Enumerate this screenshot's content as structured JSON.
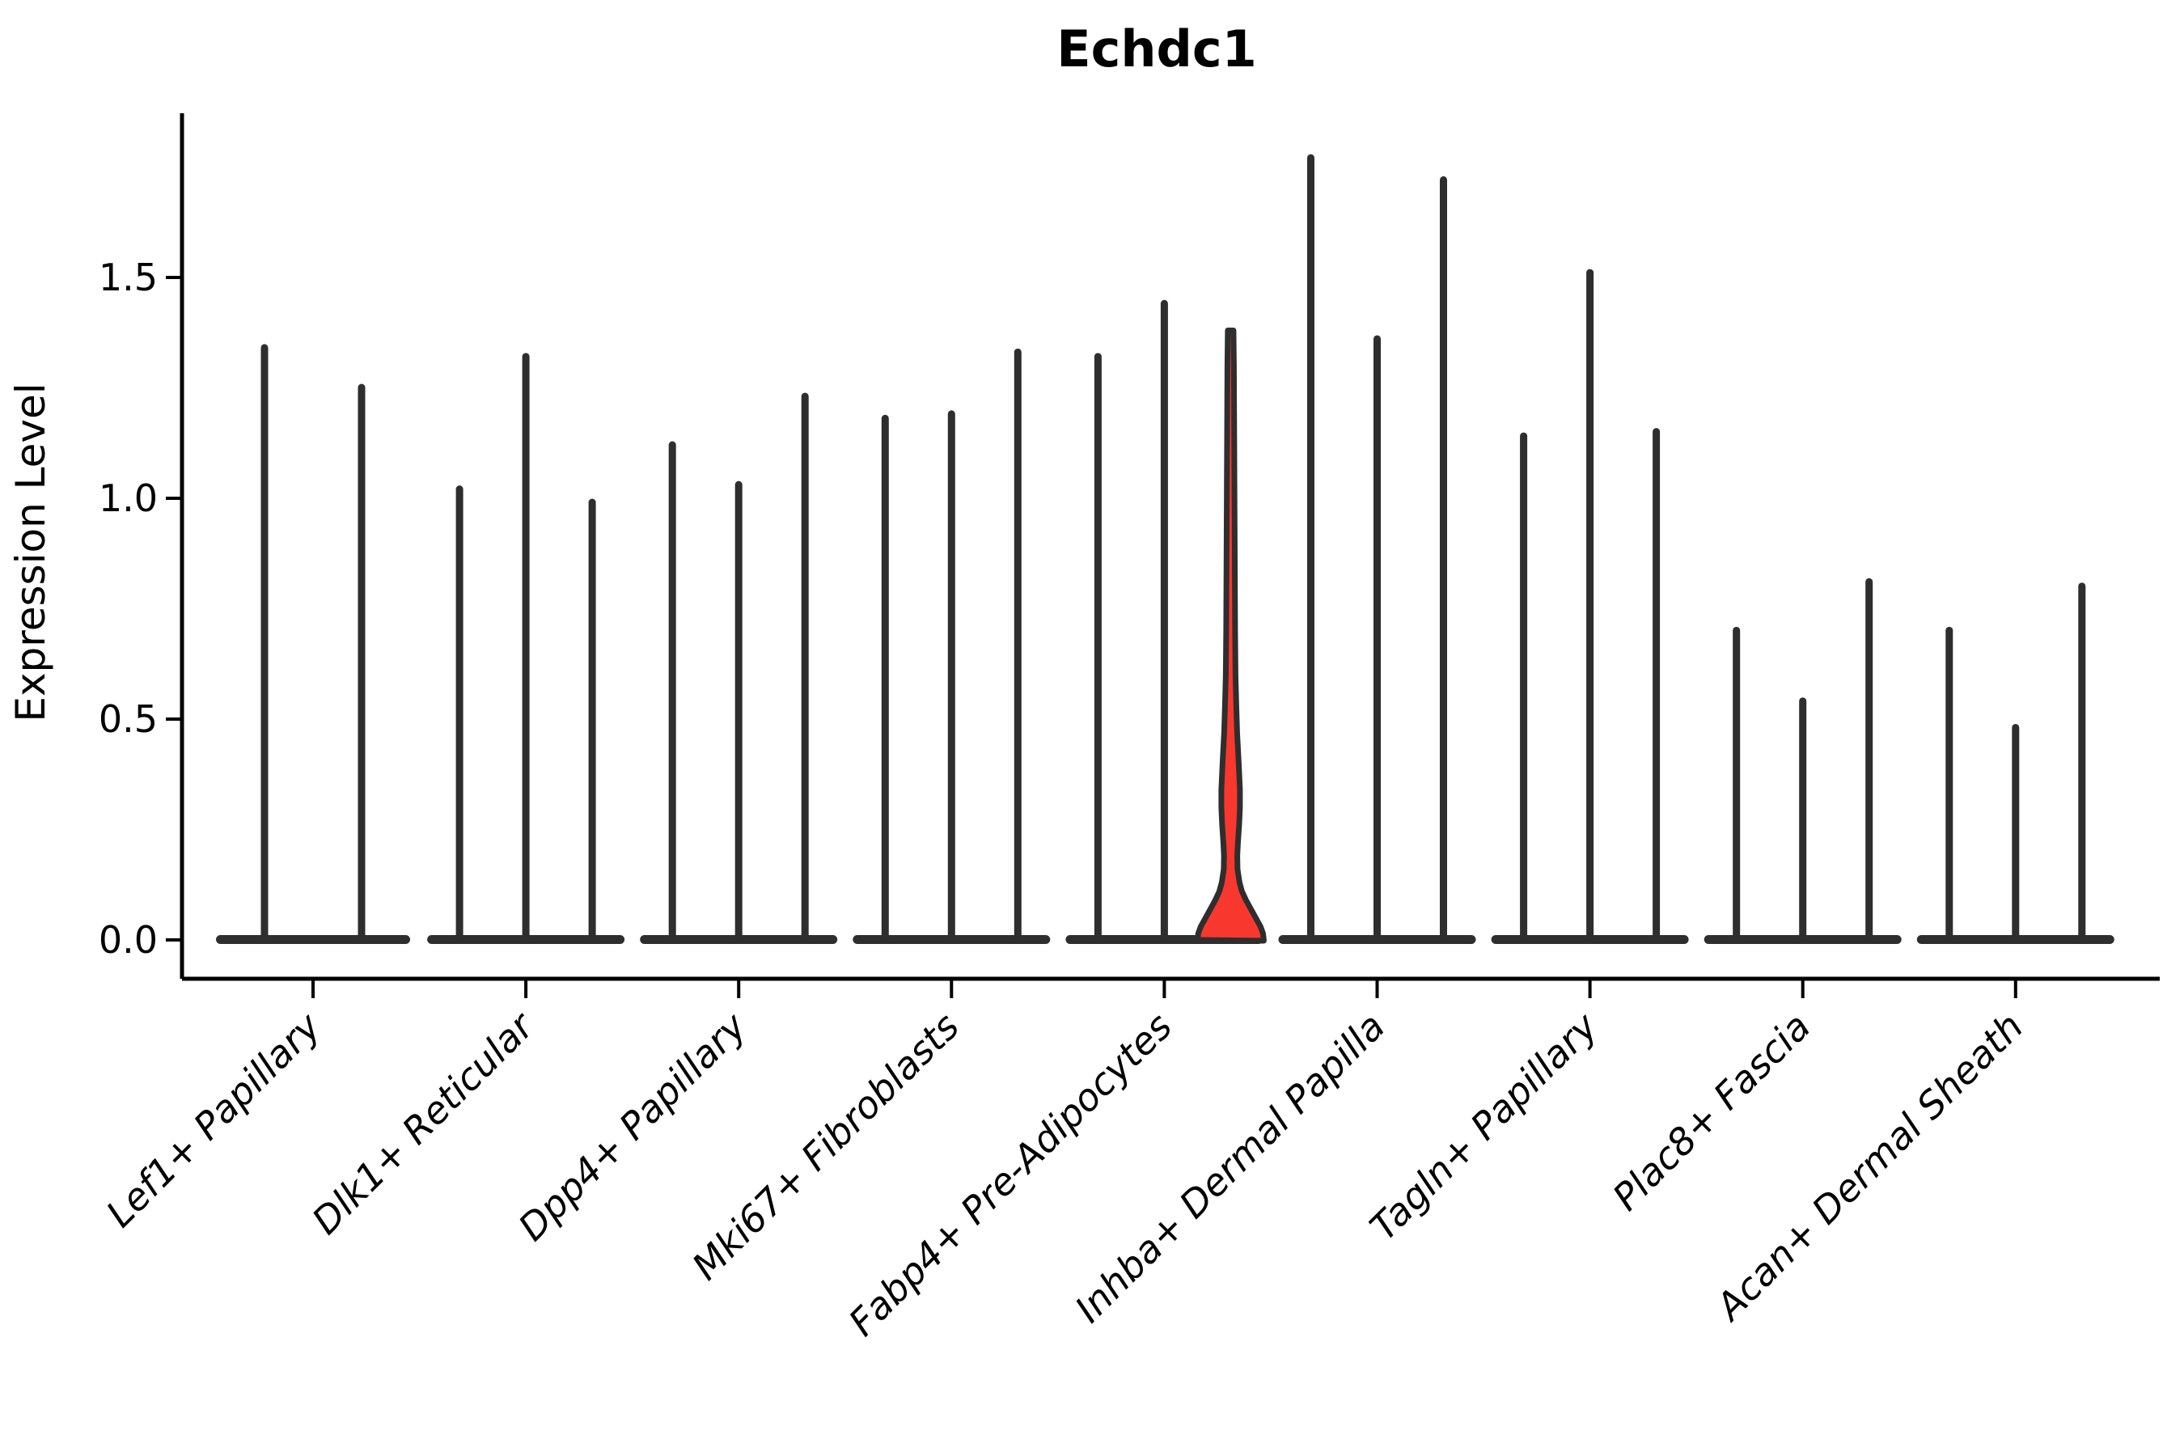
{
  "figure": {
    "title": "Echdc1"
  },
  "axes": {
    "ylabel": "Expression Level",
    "yticks": [
      {
        "value": 0.0,
        "label": "0.0"
      },
      {
        "value": 0.5,
        "label": "0.5"
      },
      {
        "value": 1.0,
        "label": "1.0"
      },
      {
        "value": 1.5,
        "label": "1.5"
      }
    ]
  },
  "colors": {
    "violin_line": "#2e2e2e",
    "highlight_fill": "#f8382e",
    "axis_line": "#000000",
    "text": "#000000",
    "background": "#ffffff"
  },
  "chart_data": {
    "type": "violin",
    "title": "Echdc1",
    "xlabel": "",
    "ylabel": "Expression Level",
    "ylim": [
      -0.09,
      1.87
    ],
    "yticks": [
      0.0,
      0.5,
      1.0,
      1.5
    ],
    "grid": false,
    "legend_position": "none",
    "categories": [
      "Lef1+ Papillary",
      "Dlk1+ Reticular",
      "Dpp4+ Papillary",
      "Mki67+ Fibroblasts",
      "Fabp4+ Pre-Adipocytes",
      "Inhba+ Dermal Papilla",
      "Tagln+ Papillary",
      "Plac8+ Fascia",
      "Acan+ Dermal Sheath"
    ],
    "series": [
      {
        "category": "Lef1+ Papillary",
        "violins": [
          {
            "max_expression": 1.35
          },
          {
            "max_expression": 1.26
          }
        ]
      },
      {
        "category": "Dlk1+ Reticular",
        "violins": [
          {
            "max_expression": 1.03
          },
          {
            "max_expression": 1.33
          },
          {
            "max_expression": 1.0
          }
        ]
      },
      {
        "category": "Dpp4+ Papillary",
        "violins": [
          {
            "max_expression": 1.13
          },
          {
            "max_expression": 1.04
          },
          {
            "max_expression": 1.24
          }
        ]
      },
      {
        "category": "Mki67+ Fibroblasts",
        "violins": [
          {
            "max_expression": 1.19
          },
          {
            "max_expression": 1.2
          },
          {
            "max_expression": 1.34
          }
        ]
      },
      {
        "category": "Fabp4+ Pre-Adipocytes",
        "violins": [
          {
            "max_expression": 1.33
          },
          {
            "max_expression": 1.45
          },
          {
            "max_expression": 1.38,
            "highlight": true,
            "fill": "#f8382e",
            "bulge_at_low_expression": true
          }
        ]
      },
      {
        "category": "Inhba+ Dermal Papilla",
        "violins": [
          {
            "max_expression": 1.78
          },
          {
            "max_expression": 1.37
          },
          {
            "max_expression": 1.73
          }
        ]
      },
      {
        "category": "Tagln+ Papillary",
        "violins": [
          {
            "max_expression": 1.15
          },
          {
            "max_expression": 1.52
          },
          {
            "max_expression": 1.16
          }
        ]
      },
      {
        "category": "Plac8+ Fascia",
        "violins": [
          {
            "max_expression": 0.71
          },
          {
            "max_expression": 0.55
          },
          {
            "max_expression": 0.82
          }
        ]
      },
      {
        "category": "Acan+ Dermal Sheath",
        "violins": [
          {
            "max_expression": 0.71
          },
          {
            "max_expression": 0.49
          },
          {
            "max_expression": 0.81
          }
        ]
      }
    ]
  }
}
